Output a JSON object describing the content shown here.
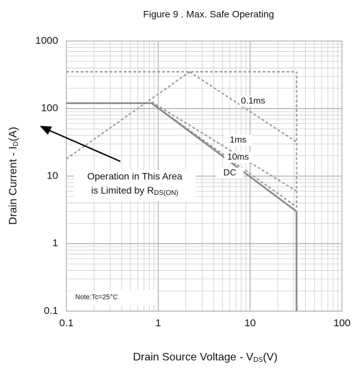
{
  "chart_data": {
    "type": "line",
    "title": "Figure 9 . Max. Safe Operating",
    "xlabel": [
      "Drain Source Voltage - V",
      "DS",
      "(V)"
    ],
    "ylabel": [
      "Drain Current - I",
      "D",
      "(A)"
    ],
    "xscale": "log",
    "yscale": "log",
    "xlim": [
      0.1,
      100
    ],
    "ylim": [
      0.1,
      1000
    ],
    "xticks": [
      0.1,
      1,
      10,
      100
    ],
    "yticks": [
      0.1,
      1,
      10,
      100,
      1000
    ],
    "grid": true,
    "minor_grid": true,
    "annotation": [
      "Operation in This Area",
      "is Limited by R",
      "DS(ON)"
    ],
    "note": "Note:Tc=25°C",
    "series": [
      {
        "x": [
          0.1,
          2.2
        ],
        "y": [
          18,
          350
        ],
        "color": "#999999",
        "dashed": true
      },
      {
        "name": "0.1ms",
        "x": [
          0.1,
          2.2,
          32
        ],
        "y": [
          350,
          350,
          350
        ],
        "color": "#999999",
        "dashed": true
      },
      {
        "x": [
          2.2,
          32,
          32
        ],
        "y": [
          350,
          32,
          350
        ],
        "color": "#999999",
        "dashed": true
      },
      {
        "name": "1ms",
        "x": [
          0.85,
          32,
          32
        ],
        "y": [
          125,
          6,
          350
        ],
        "color": "#999999",
        "dashed": true
      },
      {
        "name": "10ms",
        "x": [
          0.85,
          32,
          32
        ],
        "y": [
          120,
          3.5,
          6
        ],
        "color": "#999999",
        "dashed": true
      },
      {
        "name": "DC",
        "x": [
          0.1,
          0.85,
          32,
          32
        ],
        "y": [
          120,
          120,
          3,
          0.1
        ],
        "color": "#888888",
        "dashed": false
      }
    ]
  }
}
